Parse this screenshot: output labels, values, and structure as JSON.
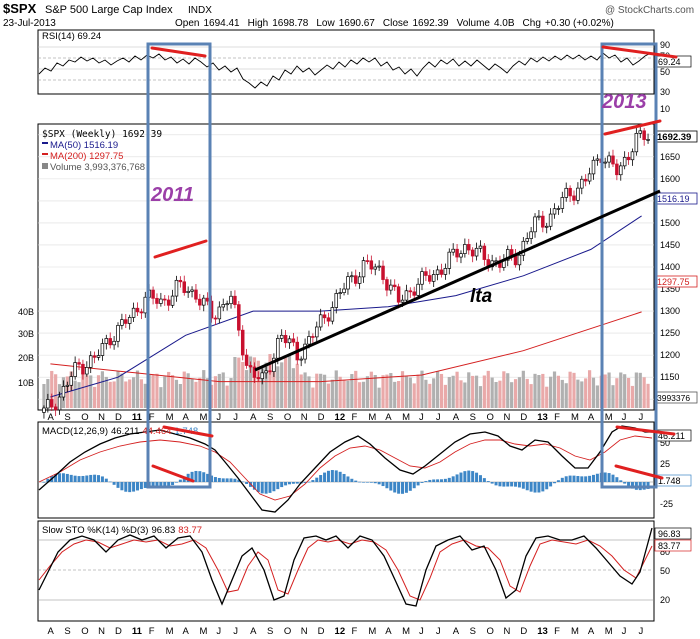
{
  "header": {
    "symbol": "$SPX",
    "name": "S&P 500 Large Cap Index",
    "exchange": "INDX",
    "watermark": "@ StockCharts.com",
    "date": "23-Jul-2013",
    "quote": {
      "open_label": "Open",
      "open": "1694.41",
      "high_label": "High",
      "high": "1698.78",
      "low_label": "Low",
      "low": "1690.67",
      "close_label": "Close",
      "close": "1692.39",
      "volume_label": "Volume",
      "volume": "4.0B",
      "chg_label": "Chg",
      "chg": "+0.30 (+0.02%)"
    }
  },
  "colors": {
    "price_line": "#000000",
    "ma50": "#1a1a8c",
    "ma200": "#d42020",
    "volume_up": "#b0b0b0",
    "volume_down": "#e9a9a9",
    "histogram": "#3d86c6",
    "annotation_red": "#e02020",
    "annotation_box": "#5a82b4",
    "annotation_text": "#9b3fa8",
    "trendline": "#000000"
  },
  "rsi": {
    "label": "RSI(14) 69.24",
    "value_badge": "69.24",
    "ticks": [
      "90",
      "70",
      "50",
      "30",
      "10"
    ]
  },
  "price": {
    "legend": [
      {
        "text": "$SPX (Weekly) 1692.39",
        "color": "#000000"
      },
      {
        "text": "MA(50) 1516.19",
        "color": "#1a1a8c"
      },
      {
        "text": "MA(200) 1297.75",
        "color": "#d42020"
      },
      {
        "text": "Volume 3,993,376,768",
        "color": "#555555"
      }
    ],
    "ticks": [
      "1700",
      "1650",
      "1600",
      "1550",
      "1500",
      "1450",
      "1400",
      "1350",
      "1300",
      "1250",
      "1200",
      "1150",
      "1100"
    ],
    "close_badge": "1692.39",
    "ma50_badge": "1516.19",
    "ma200_badge": "1297.75",
    "volume_badge": "3993376",
    "volume_ticks": [
      "40B",
      "30B",
      "20B",
      "10B"
    ]
  },
  "macd": {
    "label_name": "MACD(12,26,9)",
    "label_macd": "46.211",
    "label_signal": "44.464",
    "label_hist": "1.748",
    "macd_badge": "46.211",
    "hist_badge": "1.748",
    "ticks": [
      "50",
      "25",
      "0",
      "-25"
    ]
  },
  "sto": {
    "label_name": "Slow STO %K(14) %D(3)",
    "label_k": "96.83",
    "label_d": "83.77",
    "k_badge": "96.83",
    "d_badge": "83.77",
    "ticks": [
      "80",
      "50",
      "20"
    ]
  },
  "x_axis": {
    "labels": [
      "A",
      "S",
      "O",
      "N",
      "D",
      "11",
      "F",
      "M",
      "A",
      "M",
      "J",
      "J",
      "A",
      "S",
      "O",
      "N",
      "D",
      "12",
      "F",
      "M",
      "A",
      "M",
      "J",
      "J",
      "A",
      "S",
      "O",
      "N",
      "D",
      "13",
      "F",
      "M",
      "A",
      "M",
      "J",
      "J"
    ]
  },
  "annotations": {
    "year_2011": "2011",
    "year_2013": "2013",
    "trendline_label": "lta"
  },
  "chart_data": {
    "type": "line",
    "title": "$SPX S&P 500 Large Cap Index INDX",
    "xlabel": "",
    "ylabel": "",
    "x_range": [
      "2010-08",
      "2013-07"
    ],
    "ylim": [
      1080,
      1720
    ],
    "series": [
      {
        "name": "$SPX (Weekly)",
        "x": [
          "2010-08",
          "2010-09",
          "2010-10",
          "2010-11",
          "2010-12",
          "2011-01",
          "2011-02",
          "2011-03",
          "2011-04",
          "2011-05",
          "2011-06",
          "2011-07",
          "2011-08",
          "2011-09",
          "2011-10",
          "2011-11",
          "2011-12",
          "2012-01",
          "2012-02",
          "2012-03",
          "2012-04",
          "2012-05",
          "2012-06",
          "2012-07",
          "2012-08",
          "2012-09",
          "2012-10",
          "2012-11",
          "2012-12",
          "2013-01",
          "2013-02",
          "2013-03",
          "2013-04",
          "2013-05",
          "2013-06",
          "2013-07"
        ],
        "values": [
          1070,
          1110,
          1175,
          1190,
          1245,
          1280,
          1330,
          1320,
          1355,
          1340,
          1285,
          1340,
          1180,
          1135,
          1250,
          1200,
          1250,
          1310,
          1365,
          1405,
          1390,
          1320,
          1360,
          1380,
          1415,
          1450,
          1420,
          1410,
          1425,
          1495,
          1515,
          1565,
          1590,
          1660,
          1610,
          1692
        ]
      },
      {
        "name": "MA(50)",
        "x": [
          "2010-08",
          "2010-12",
          "2011-04",
          "2011-08",
          "2011-12",
          "2012-04",
          "2012-08",
          "2012-12",
          "2013-04",
          "2013-07"
        ],
        "values": [
          1105,
          1150,
          1245,
          1300,
          1300,
          1310,
          1335,
          1380,
          1440,
          1516
        ]
      },
      {
        "name": "MA(200)",
        "x": [
          "2010-08",
          "2011-01",
          "2011-06",
          "2011-12",
          "2012-06",
          "2012-12",
          "2013-07"
        ],
        "values": [
          1180,
          1160,
          1140,
          1140,
          1155,
          1210,
          1298
        ]
      }
    ]
  }
}
